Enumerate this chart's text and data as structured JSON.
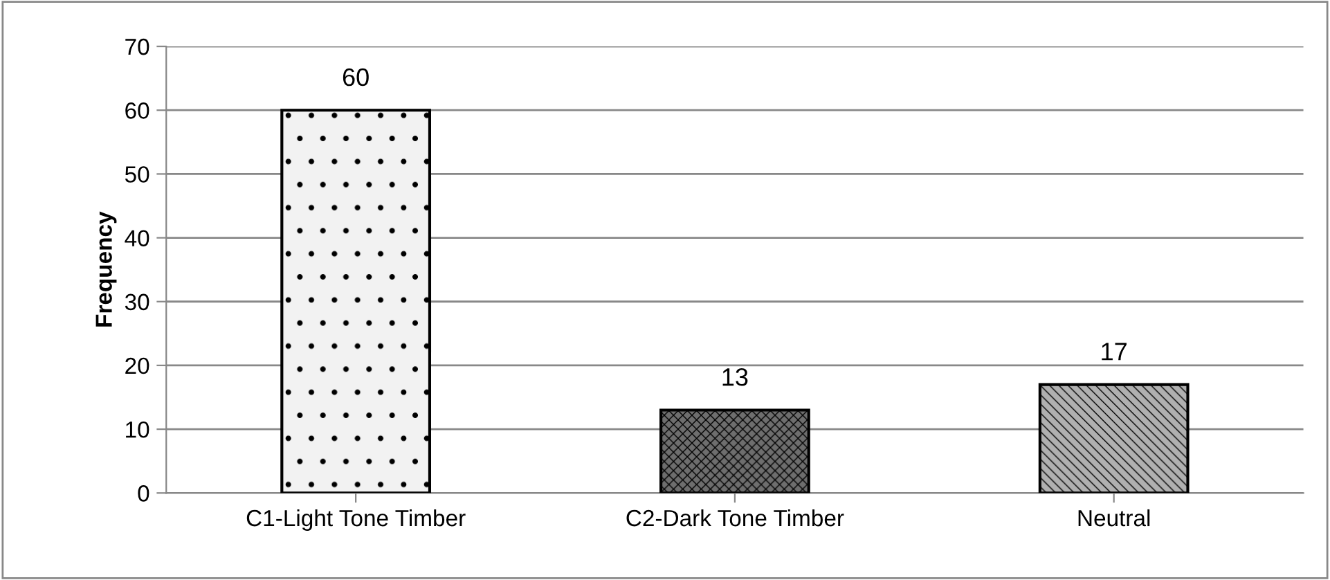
{
  "chart_data": {
    "type": "bar",
    "ylabel": "Frequency",
    "categories": [
      "C1-Light Tone Timber",
      "C2-Dark Tone Timber",
      "Neutral"
    ],
    "values": [
      60,
      13,
      17
    ],
    "colors": [
      "#f2f2f2",
      "#6e6e6e",
      "#b0b0b0"
    ],
    "ylim": [
      0,
      70
    ],
    "yticks": [
      0,
      10,
      20,
      30,
      40,
      50,
      60,
      70
    ],
    "grid": "y",
    "data_labels": true,
    "legend": false
  }
}
